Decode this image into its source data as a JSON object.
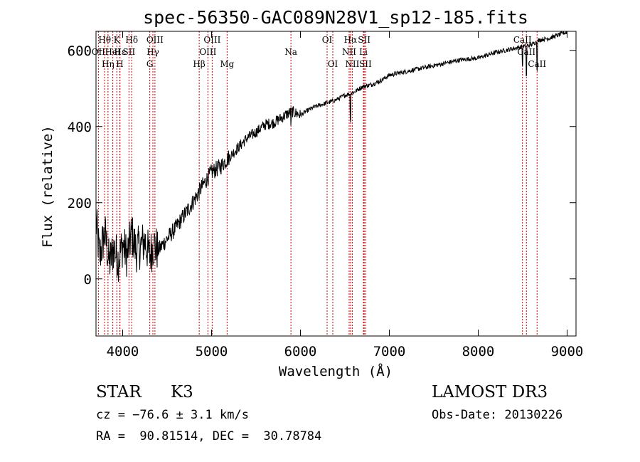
{
  "chart_data": {
    "type": "line",
    "title": "spec-56350-GAC089N28V1_sp12-185.fits",
    "xlabel": "Wavelength (Å)",
    "ylabel": "Flux (relative)",
    "xlim": [
      3700,
      9100
    ],
    "ylim": [
      -150,
      650
    ],
    "xticks": [
      4000,
      5000,
      6000,
      7000,
      8000,
      9000
    ],
    "yticks": [
      0,
      200,
      400,
      600
    ],
    "series": [
      {
        "name": "flux",
        "x": [
          3700,
          3740,
          3800,
          3850,
          3900,
          3950,
          4000,
          4050,
          4100,
          4150,
          4200,
          4250,
          4300,
          4350,
          4400,
          4500,
          4600,
          4700,
          4800,
          4900,
          5000,
          5100,
          5200,
          5300,
          5400,
          5500,
          5600,
          5700,
          5800,
          5900,
          6000,
          6100,
          6200,
          6300,
          6400,
          6500,
          6600,
          6700,
          6800,
          6900,
          7000,
          7200,
          7400,
          7600,
          7800,
          8000,
          8200,
          8400,
          8500,
          8600,
          8700,
          8800,
          8900,
          8950,
          9000
        ],
        "y": [
          150,
          60,
          120,
          40,
          80,
          50,
          90,
          60,
          120,
          75,
          85,
          100,
          60,
          90,
          75,
          105,
          135,
          170,
          205,
          245,
          280,
          295,
          320,
          345,
          370,
          385,
          405,
          410,
          425,
          440,
          430,
          445,
          455,
          462,
          470,
          482,
          490,
          505,
          510,
          520,
          535,
          545,
          555,
          565,
          575,
          580,
          595,
          605,
          610,
          615,
          628,
          632,
          640,
          645,
          648
        ]
      }
    ],
    "spectral_lines": [
      {
        "label": "Hθ",
        "x": 3798,
        "row": 1
      },
      {
        "label": "K",
        "x": 3934,
        "row": 1
      },
      {
        "label": "Hδ",
        "x": 4102,
        "row": 1
      },
      {
        "label": "OIII",
        "x": 4363,
        "row": 1
      },
      {
        "label": "OIII",
        "x": 5007,
        "row": 1
      },
      {
        "label": "OI",
        "x": 6300,
        "row": 1
      },
      {
        "label": "Hα",
        "x": 6563,
        "row": 1
      },
      {
        "label": "SII",
        "x": 6717,
        "row": 1
      },
      {
        "label": "CaII",
        "x": 8498,
        "row": 1
      },
      {
        "label": "OII",
        "x": 3727,
        "row": 2
      },
      {
        "label": "Hε",
        "x": 3970,
        "row": 2
      },
      {
        "label": "HeI",
        "x": 3889,
        "row": 2
      },
      {
        "label": "SII",
        "x": 4071,
        "row": 2
      },
      {
        "label": "Hγ",
        "x": 4340,
        "row": 2
      },
      {
        "label": "OIII",
        "x": 4959,
        "row": 2
      },
      {
        "label": "Na",
        "x": 5893,
        "row": 2
      },
      {
        "label": "NII",
        "x": 6548,
        "row": 2
      },
      {
        "label": "Li",
        "x": 6708,
        "row": 2
      },
      {
        "label": "CaII",
        "x": 8542,
        "row": 2
      },
      {
        "label": "Hη",
        "x": 3835,
        "row": 3
      },
      {
        "label": "H",
        "x": 3968,
        "row": 3
      },
      {
        "label": "G",
        "x": 4305,
        "row": 3
      },
      {
        "label": "Hβ",
        "x": 4861,
        "row": 3
      },
      {
        "label": "Mg",
        "x": 5175,
        "row": 3
      },
      {
        "label": "OI",
        "x": 6364,
        "row": 3
      },
      {
        "label": "NII",
        "x": 6583,
        "row": 3
      },
      {
        "label": "SII",
        "x": 6731,
        "row": 3
      },
      {
        "label": "CaII",
        "x": 8662,
        "row": 3
      }
    ],
    "colors": {
      "spectrum": "#000000",
      "line_marker": "#cc0000"
    }
  },
  "info": {
    "class": "STAR",
    "subclass": "K3",
    "survey": "LAMOST DR3",
    "cz": "cz = −76.6 ± 3.1 km/s",
    "obs_date": "Obs-Date: 20130226",
    "coords": "RA =  90.81514, DEC =  30.78784"
  }
}
